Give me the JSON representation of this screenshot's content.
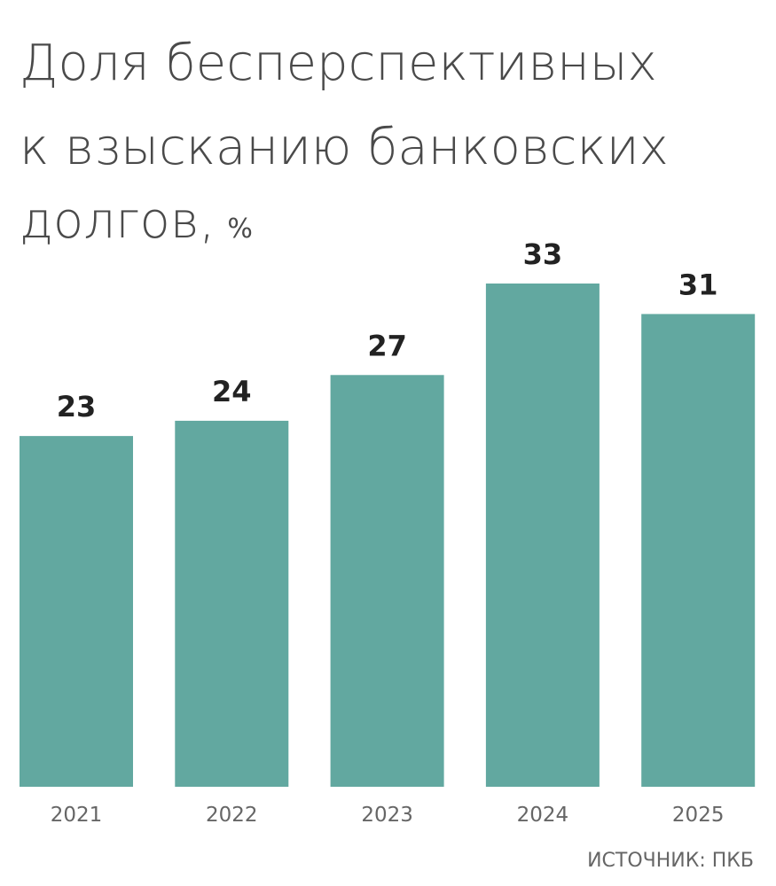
{
  "chart_data": {
    "type": "bar",
    "title": [
      "Доля бесперспективных",
      "к взысканию банковских",
      "долгов,"
    ],
    "unit": "%",
    "categories": [
      "2021",
      "2022",
      "2023",
      "2024",
      "2025"
    ],
    "values": [
      23,
      24,
      27,
      33,
      31
    ],
    "color": "#62a8a0",
    "source": "ИСТОЧНИК: ПКБ"
  }
}
